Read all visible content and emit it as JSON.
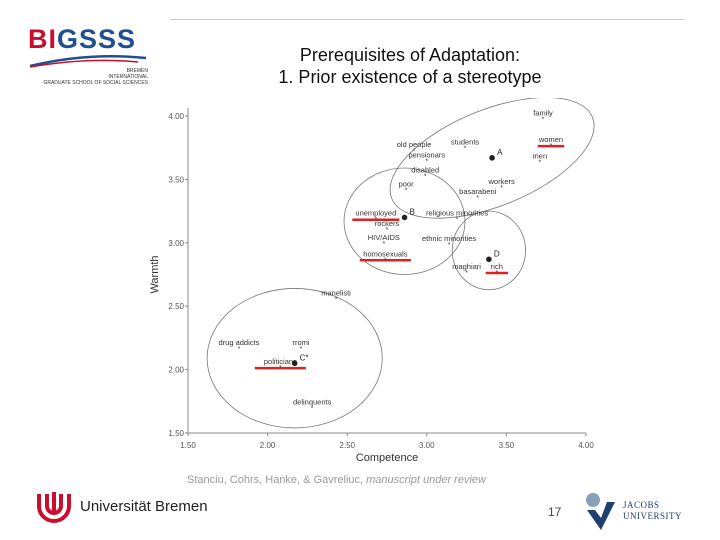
{
  "header": {
    "logo_word_bi": "BI",
    "logo_word_gsss": "GSSS",
    "logo_sub_1": "BREMEN",
    "logo_sub_2": "INTERNATIONAL",
    "logo_sub_3": "GRADUATE SCHOOL OF SOCIAL SCIENCES",
    "title_line_1": "Prerequisites of Adaptation:",
    "title_line_2": "1. Prior existence of a stereotype"
  },
  "chart_data": {
    "type": "scatter",
    "title": "",
    "xlabel": "Competence",
    "ylabel": "Warmth",
    "xlim": [
      1.5,
      4.0
    ],
    "ylim": [
      1.5,
      4.0
    ],
    "x_ticks": [
      "1.50",
      "2.00",
      "2.50",
      "3.00",
      "3.50",
      "4.00"
    ],
    "y_ticks": [
      "1.50",
      "2.00",
      "2.50",
      "3.00",
      "3.50",
      "4.00"
    ],
    "x_tick_values": [
      1.5,
      2.0,
      2.5,
      3.0,
      3.5,
      4.0
    ],
    "y_tick_values": [
      1.5,
      2.0,
      2.5,
      3.0,
      3.5,
      4.0
    ],
    "grid": false,
    "points": [
      {
        "label": "family",
        "x": 3.73,
        "y": 3.98,
        "underline": false
      },
      {
        "label": "women",
        "x": 3.78,
        "y": 3.77,
        "underline": true
      },
      {
        "label": "students",
        "x": 3.24,
        "y": 3.75,
        "underline": false
      },
      {
        "label": "old people",
        "x": 2.92,
        "y": 3.73,
        "underline": false
      },
      {
        "label": "pensionars",
        "x": 3.0,
        "y": 3.65,
        "underline": false
      },
      {
        "label": "men",
        "x": 3.71,
        "y": 3.64,
        "underline": false
      },
      {
        "label": "disabled",
        "x": 2.99,
        "y": 3.53,
        "underline": false
      },
      {
        "label": "workers",
        "x": 3.47,
        "y": 3.44,
        "underline": false
      },
      {
        "label": "poor",
        "x": 2.87,
        "y": 3.42,
        "underline": false
      },
      {
        "label": "basarabeni",
        "x": 3.32,
        "y": 3.36,
        "underline": false
      },
      {
        "label": "unemployed",
        "x": 2.68,
        "y": 3.19,
        "underline": true
      },
      {
        "label": "religious minorities",
        "x": 3.19,
        "y": 3.19,
        "underline": false
      },
      {
        "label": "rockers",
        "x": 2.75,
        "y": 3.11,
        "underline": false
      },
      {
        "label": "HIV/AIDS",
        "x": 2.73,
        "y": 3.0,
        "underline": false
      },
      {
        "label": "ethnic minorities",
        "x": 3.14,
        "y": 2.99,
        "underline": false
      },
      {
        "label": "homosexuals",
        "x": 2.74,
        "y": 2.87,
        "underline": true
      },
      {
        "label": "maghiari",
        "x": 3.25,
        "y": 2.77,
        "underline": false
      },
      {
        "label": "rich",
        "x": 3.44,
        "y": 2.77,
        "underline": true
      },
      {
        "label": "manelisti",
        "x": 2.43,
        "y": 2.56,
        "underline": false
      },
      {
        "label": "drug addicts",
        "x": 1.82,
        "y": 2.17,
        "underline": false
      },
      {
        "label": "rromi",
        "x": 2.21,
        "y": 2.17,
        "underline": false
      },
      {
        "label": "politicians",
        "x": 2.08,
        "y": 2.02,
        "underline": true
      },
      {
        "label": "delinquents",
        "x": 2.28,
        "y": 1.7,
        "underline": false
      }
    ],
    "centroids": [
      {
        "label": "A",
        "x": 3.41,
        "y": 3.67
      },
      {
        "label": "B",
        "x": 2.86,
        "y": 3.2
      },
      {
        "label": "C*",
        "x": 2.17,
        "y": 2.05
      },
      {
        "label": "D",
        "x": 3.39,
        "y": 2.87
      }
    ],
    "clusters": [
      {
        "cx": 3.41,
        "cy": 3.67,
        "rx": 0.68,
        "ry": 0.38,
        "rotate": -22
      },
      {
        "cx": 2.86,
        "cy": 3.17,
        "rx": 0.38,
        "ry": 0.42,
        "rotate": 0
      },
      {
        "cx": 2.17,
        "cy": 2.09,
        "rx": 0.55,
        "ry": 0.55,
        "rotate": 0
      },
      {
        "cx": 3.39,
        "cy": 2.94,
        "rx": 0.23,
        "ry": 0.31,
        "rotate": 0
      }
    ],
    "highlight_color": "#dd2222"
  },
  "citation": {
    "authors": "Stanciu, Cohrs, Hanke, & Gavreliuc, ",
    "note": "manuscript under review"
  },
  "footer": {
    "university": "Universität Bremen",
    "page_number": "17",
    "jacobs_line_1": "JACOBS",
    "jacobs_line_2": "UNIVERSITY"
  }
}
